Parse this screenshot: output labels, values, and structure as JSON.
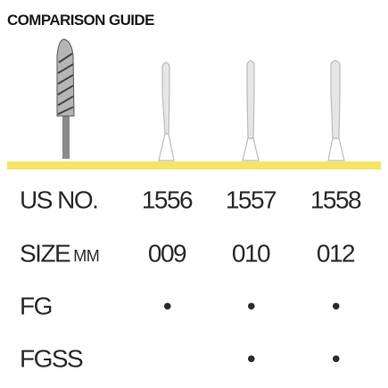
{
  "header": {
    "title": "COMPARISON GUIDE"
  },
  "table": {
    "rows": [
      {
        "label": "US NO.",
        "cells": [
          "1556",
          "1557",
          "1558"
        ]
      },
      {
        "label": "SIZE",
        "unit": "MM",
        "cells": [
          "009",
          "010",
          "012"
        ]
      },
      {
        "label": "FG",
        "cells": [
          "•",
          "•",
          "•"
        ]
      },
      {
        "label": "FGSS",
        "cells": [
          null,
          "•",
          "•"
        ]
      }
    ]
  }
}
